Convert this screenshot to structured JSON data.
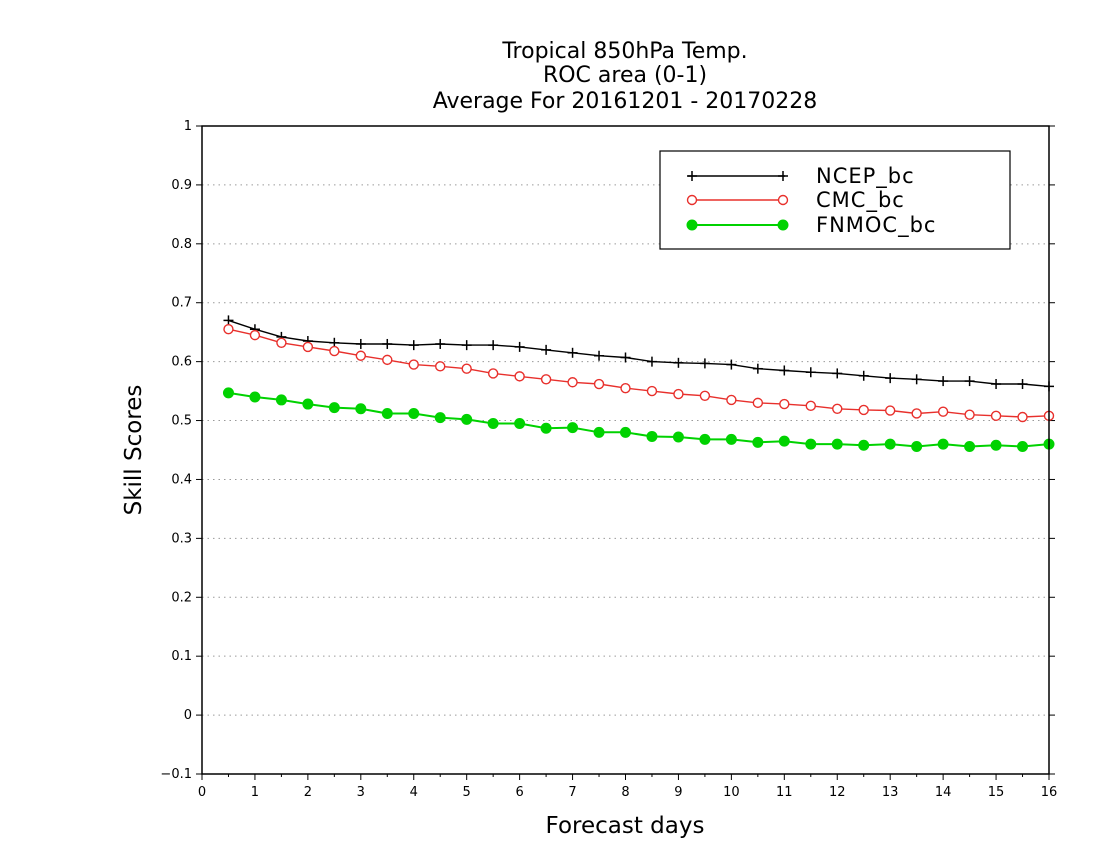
{
  "chart_data": {
    "type": "line",
    "title_lines": [
      "Tropical 850hPa Temp.",
      "ROC area (0-1)",
      "Average For 20161201 - 20170228"
    ],
    "xlabel": "Forecast days",
    "ylabel": "Skill Scores",
    "xlim": [
      0,
      16
    ],
    "ylim": [
      -0.1,
      1
    ],
    "x_ticks": [
      0,
      1,
      2,
      3,
      4,
      5,
      6,
      7,
      8,
      9,
      10,
      11,
      12,
      13,
      14,
      15,
      16
    ],
    "x_tick_labels": [
      "0",
      "1",
      "2",
      "3",
      "4",
      "5",
      "6",
      "7",
      "8",
      "9",
      "10",
      "11",
      "12",
      "13",
      "14",
      "15",
      "16"
    ],
    "y_ticks": [
      -0.1,
      0,
      0.1,
      0.2,
      0.3,
      0.4,
      0.5,
      0.6,
      0.7,
      0.8,
      0.9,
      1
    ],
    "y_tick_labels": [
      "−0.1",
      "0",
      "0.1",
      "0.2",
      "0.3",
      "0.4",
      "0.5",
      "0.6",
      "0.7",
      "0.8",
      "0.9",
      "1"
    ],
    "grid": "horizontal-dotted",
    "legend_position": "top-right",
    "x": [
      0.5,
      1,
      1.5,
      2,
      2.5,
      3,
      3.5,
      4,
      4.5,
      5,
      5.5,
      6,
      6.5,
      7,
      7.5,
      8,
      8.5,
      9,
      9.5,
      10,
      10.5,
      11,
      11.5,
      12,
      12.5,
      13,
      13.5,
      14,
      14.5,
      15,
      15.5,
      16
    ],
    "series": [
      {
        "name": "NCEP_bc",
        "color": "#000000",
        "marker": "plus",
        "values": [
          0.67,
          0.655,
          0.642,
          0.635,
          0.632,
          0.63,
          0.63,
          0.628,
          0.63,
          0.628,
          0.628,
          0.625,
          0.62,
          0.615,
          0.61,
          0.607,
          0.6,
          0.598,
          0.597,
          0.595,
          0.588,
          0.585,
          0.582,
          0.58,
          0.576,
          0.572,
          0.57,
          0.567,
          0.567,
          0.562,
          0.562,
          0.558
        ]
      },
      {
        "name": "CMC_bc",
        "color": "#e8302c",
        "marker": "open-circle",
        "values": [
          0.655,
          0.645,
          0.632,
          0.625,
          0.618,
          0.61,
          0.603,
          0.595,
          0.592,
          0.588,
          0.58,
          0.575,
          0.57,
          0.565,
          0.562,
          0.555,
          0.55,
          0.545,
          0.542,
          0.535,
          0.53,
          0.528,
          0.525,
          0.52,
          0.518,
          0.517,
          0.512,
          0.515,
          0.51,
          0.508,
          0.506,
          0.508
        ]
      },
      {
        "name": "FNMOC_bc",
        "color": "#00d200",
        "marker": "filled-circle",
        "values": [
          0.547,
          0.54,
          0.535,
          0.528,
          0.522,
          0.52,
          0.512,
          0.512,
          0.505,
          0.502,
          0.495,
          0.495,
          0.487,
          0.488,
          0.48,
          0.48,
          0.473,
          0.472,
          0.468,
          0.468,
          0.463,
          0.465,
          0.46,
          0.46,
          0.458,
          0.46,
          0.456,
          0.46,
          0.456,
          0.458,
          0.456,
          0.46
        ]
      }
    ]
  }
}
